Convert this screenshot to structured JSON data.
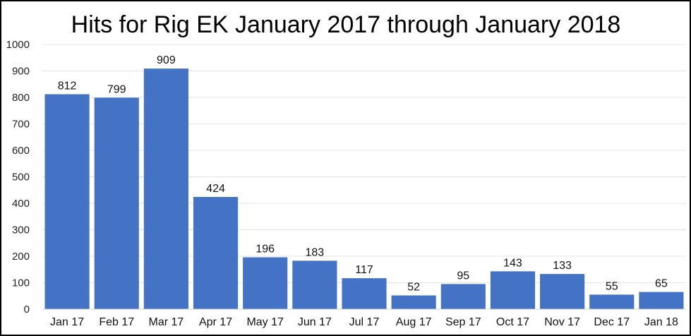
{
  "chart_data": {
    "type": "bar",
    "title": "Hits for Rig EK January 2017 through January 2018",
    "xlabel": "",
    "ylabel": "",
    "ylim": [
      0,
      1000
    ],
    "y_ticks": [
      "0",
      "100",
      "200",
      "300",
      "400",
      "500",
      "600",
      "700",
      "800",
      "900",
      "1000"
    ],
    "grid": true,
    "legend": "none",
    "bar_color": "#4472C4",
    "categories": [
      "Jan 17",
      "Feb 17",
      "Mar 17",
      "Apr 17",
      "May 17",
      "Jun 17",
      "Jul 17",
      "Aug 17",
      "Sep 17",
      "Oct 17",
      "Nov 17",
      "Dec 17",
      "Jan 18"
    ],
    "values": [
      812,
      799,
      909,
      424,
      196,
      183,
      117,
      52,
      95,
      143,
      133,
      55,
      65
    ]
  }
}
